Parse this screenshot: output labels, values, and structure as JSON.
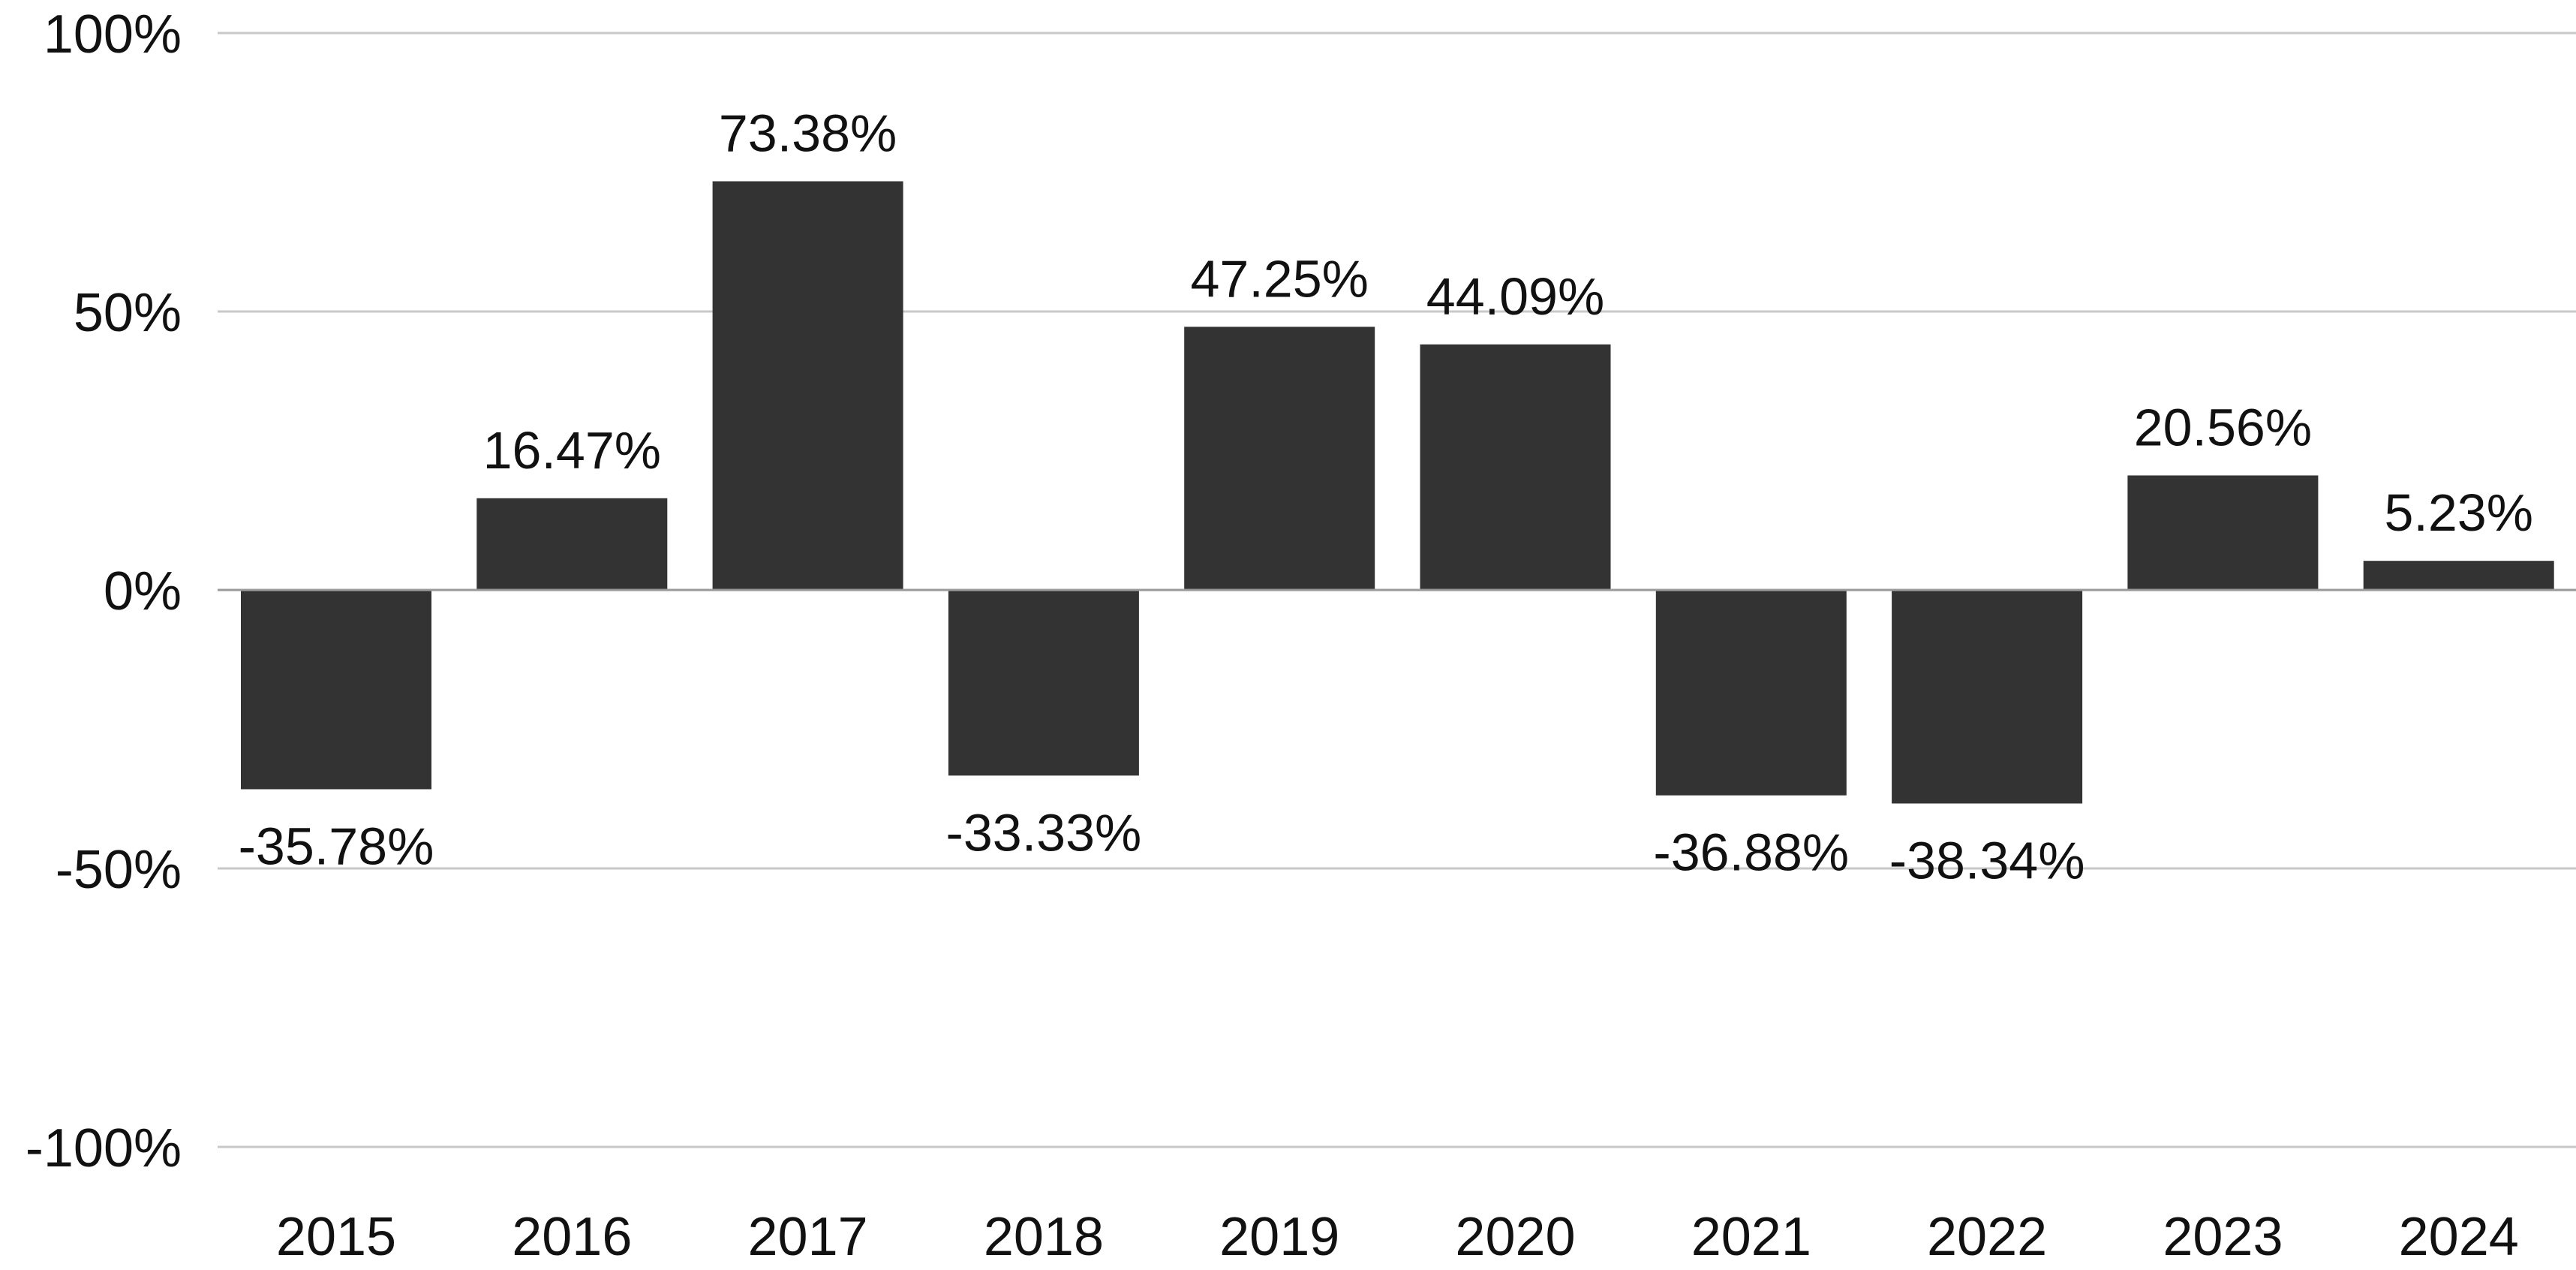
{
  "chart_data": {
    "type": "bar",
    "categories": [
      "2015",
      "2016",
      "2017",
      "2018",
      "2019",
      "2020",
      "2021",
      "2022",
      "2023",
      "2024"
    ],
    "values": [
      -35.78,
      16.47,
      73.38,
      -33.33,
      47.25,
      44.09,
      -36.88,
      -38.34,
      20.56,
      5.23
    ],
    "data_labels": [
      "-35.78%",
      "16.47%",
      "73.38%",
      "-33.33%",
      "47.25%",
      "44.09%",
      "-36.88%",
      "-38.34%",
      "20.56%",
      "5.23%"
    ],
    "yticks": [
      100,
      50,
      0,
      -50,
      -100
    ],
    "ytick_labels": [
      "100%",
      "50%",
      "0%",
      "-50%",
      "-100%"
    ],
    "ylim": [
      -100,
      100
    ],
    "grid": true,
    "legend": "none",
    "title": "",
    "xlabel": "",
    "ylabel": "",
    "bar_color": "#333333"
  }
}
